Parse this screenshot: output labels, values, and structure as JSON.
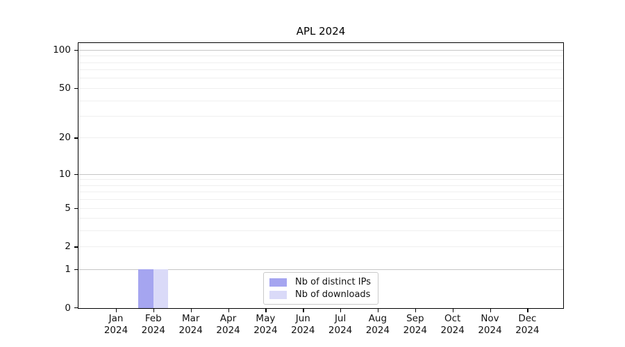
{
  "chart_data": {
    "type": "bar",
    "title": "APL 2024",
    "categories": [
      "Jan 2024",
      "Feb 2024",
      "Mar 2024",
      "Apr 2024",
      "May 2024",
      "Jun 2024",
      "Jul 2024",
      "Aug 2024",
      "Sep 2024",
      "Oct 2024",
      "Nov 2024",
      "Dec 2024"
    ],
    "series": [
      {
        "name": "Nb of distinct IPs",
        "color": "#a5a5f0",
        "values": [
          0,
          1,
          0,
          0,
          0,
          0,
          0,
          0,
          0,
          0,
          0,
          0
        ]
      },
      {
        "name": "Nb of downloads",
        "color": "#dadaf8",
        "values": [
          0,
          1,
          0,
          0,
          0,
          0,
          0,
          0,
          0,
          0,
          0,
          0
        ]
      }
    ],
    "xlabel": "",
    "ylabel": "",
    "y_scale": "log1p",
    "ylim": [
      0,
      113
    ],
    "y_ticks": [
      0,
      1,
      2,
      5,
      10,
      20,
      50,
      100
    ],
    "y_grid_major": [
      1,
      10,
      100
    ],
    "y_grid_minor": [
      2,
      3,
      4,
      5,
      6,
      7,
      8,
      9,
      20,
      30,
      40,
      50,
      60,
      70,
      80,
      90
    ],
    "grid": "horizontal",
    "legend_position": "lower center",
    "colors": {
      "axis": "#000000",
      "grid_major": "#c6c6c6",
      "grid_minor": "#efefef",
      "background": "#ffffff",
      "text": "#111111"
    }
  }
}
